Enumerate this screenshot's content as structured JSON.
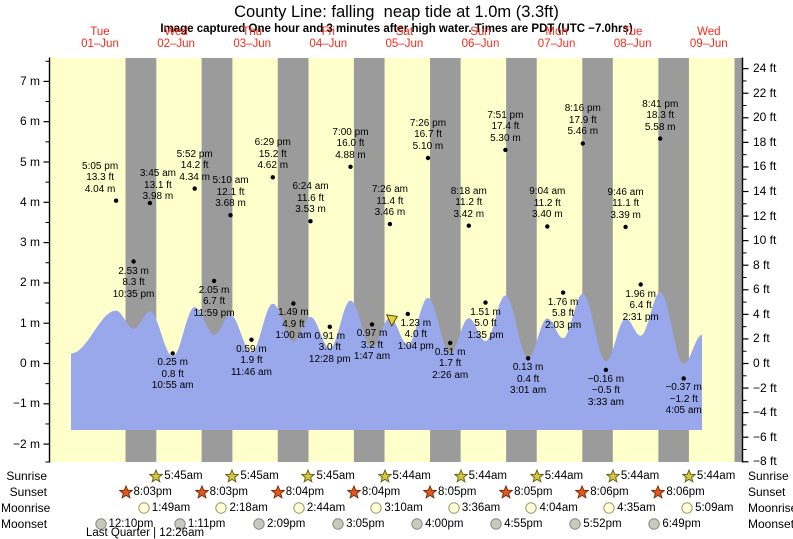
{
  "header": {
    "title": "County Line: falling  neap tide at 1.0m (3.3ft)",
    "subtitle": "Image captured One hour and 3 minutes after high water. Times are PDT (UTC −7.0hrs)"
  },
  "chart_data": {
    "type": "area",
    "title": "County Line: falling neap tide at 1.0m (3.3ft)",
    "xlabel": "",
    "ylabel_left": "meters",
    "ylabel_right": "feet",
    "ylim_m": [
      -2.44,
      7.58
    ],
    "grid": false,
    "days": [
      {
        "dow": "Tue",
        "date": "01–Jun"
      },
      {
        "dow": "Wed",
        "date": "02–Jun"
      },
      {
        "dow": "Thu",
        "date": "03–Jun"
      },
      {
        "dow": "Fri",
        "date": "04–Jun"
      },
      {
        "dow": "Sat",
        "date": "05–Jun"
      },
      {
        "dow": "Sun",
        "date": "06–Jun"
      },
      {
        "dow": "Mon",
        "date": "07–Jun"
      },
      {
        "dow": "Tue",
        "date": "08–Jun"
      },
      {
        "dow": "Wed",
        "date": "09–Jun"
      }
    ],
    "y_axis_left_ticks": [
      {
        "label": "7 m",
        "m": 7
      },
      {
        "label": "6 m",
        "m": 6
      },
      {
        "label": "5 m",
        "m": 5
      },
      {
        "label": "4 m",
        "m": 4
      },
      {
        "label": "3 m",
        "m": 3
      },
      {
        "label": "2 m",
        "m": 2
      },
      {
        "label": "1 m",
        "m": 1
      },
      {
        "label": "0 m",
        "m": 0
      },
      {
        "label": "−1 m",
        "m": -1
      },
      {
        "label": "−2 m",
        "m": -2
      }
    ],
    "y_axis_right_ticks": [
      {
        "label": "24 ft",
        "ft": 24
      },
      {
        "label": "22 ft",
        "ft": 22
      },
      {
        "label": "20 ft",
        "ft": 20
      },
      {
        "label": "18 ft",
        "ft": 18
      },
      {
        "label": "16 ft",
        "ft": 16
      },
      {
        "label": "14 ft",
        "ft": 14
      },
      {
        "label": "12 ft",
        "ft": 12
      },
      {
        "label": "10 ft",
        "ft": 10
      },
      {
        "label": "8 ft",
        "ft": 8
      },
      {
        "label": "6 ft",
        "ft": 6
      },
      {
        "label": "4 ft",
        "ft": 4
      },
      {
        "label": "2 ft",
        "ft": 2
      },
      {
        "label": "0 ft",
        "ft": 0
      },
      {
        "label": "−2 ft",
        "ft": -2
      },
      {
        "label": "−4 ft",
        "ft": -4
      },
      {
        "label": "−6 ft",
        "ft": -6
      },
      {
        "label": "−8 ft",
        "ft": -8
      }
    ],
    "tide_events": [
      {
        "day": 1,
        "time": "5:05 pm",
        "type": "high",
        "height_m": 4.04,
        "height_ft": 13.3,
        "lines": [
          "5:05 pm",
          "13.3 ft",
          "4.04 m"
        ]
      },
      {
        "day": 1,
        "time": "10:35 pm",
        "type": "low",
        "height_m": 2.53,
        "height_ft": 8.3,
        "lines": [
          "2.53 m",
          "8.3 ft",
          "10:35 pm"
        ]
      },
      {
        "day": 2,
        "time": "3:45 am",
        "type": "high",
        "height_m": 3.98,
        "height_ft": 13.1,
        "lines": [
          "3:45 am",
          "13.1 ft",
          "3.98 m"
        ]
      },
      {
        "day": 2,
        "time": "10:55 am",
        "type": "low",
        "height_m": 0.25,
        "height_ft": 0.8,
        "lines": [
          "0.25 m",
          "0.8 ft",
          "10:55 am"
        ]
      },
      {
        "day": 2,
        "time": "5:52 pm",
        "type": "high",
        "height_m": 4.34,
        "height_ft": 14.2,
        "lines": [
          "5:52 pm",
          "14.2 ft",
          "4.34 m"
        ]
      },
      {
        "day": 2,
        "time": "11:59 pm",
        "type": "low",
        "height_m": 2.05,
        "height_ft": 6.7,
        "lines": [
          "2.05 m",
          "6.7 ft",
          "11:59 pm"
        ]
      },
      {
        "day": 3,
        "time": "5:10 am",
        "type": "high",
        "height_m": 3.68,
        "height_ft": 12.1,
        "lines": [
          "5:10 am",
          "12.1 ft",
          "3.68 m"
        ]
      },
      {
        "day": 3,
        "time": "11:46 am",
        "type": "low",
        "height_m": 0.59,
        "height_ft": 1.9,
        "lines": [
          "0.59 m",
          "1.9 ft",
          "11:46 am"
        ]
      },
      {
        "day": 3,
        "time": "6:29 pm",
        "type": "high",
        "height_m": 4.62,
        "height_ft": 15.2,
        "lines": [
          "6:29 pm",
          "15.2 ft",
          "4.62 m"
        ]
      },
      {
        "day": 4,
        "time": "1:00 am",
        "type": "low",
        "height_m": 1.49,
        "height_ft": 4.9,
        "lines": [
          "1.49 m",
          "4.9 ft",
          "1:00 am"
        ]
      },
      {
        "day": 4,
        "time": "6:24 am",
        "type": "high",
        "height_m": 3.53,
        "height_ft": 11.6,
        "lines": [
          "6:24 am",
          "11.6 ft",
          "3.53 m"
        ]
      },
      {
        "day": 4,
        "time": "12:28 pm",
        "type": "low",
        "height_m": 0.91,
        "height_ft": 3.0,
        "lines": [
          "0.91 m",
          "3.0 ft",
          "12:28 pm"
        ]
      },
      {
        "day": 4,
        "time": "7:00 pm",
        "type": "high",
        "height_m": 4.88,
        "height_ft": 16.0,
        "lines": [
          "7:00 pm",
          "16.0 ft",
          "4.88 m"
        ]
      },
      {
        "day": 5,
        "time": "1:47 am",
        "type": "low",
        "height_m": 0.97,
        "height_ft": 3.2,
        "lines": [
          "0.97 m",
          "3.2 ft",
          "1:47 am"
        ]
      },
      {
        "day": 5,
        "time": "7:26 am",
        "type": "high",
        "height_m": 3.46,
        "height_ft": 11.4,
        "lines": [
          "7:26 am",
          "11.4 ft",
          "3.46 m"
        ]
      },
      {
        "day": 5,
        "time": "1:04 pm",
        "type": "low",
        "height_m": 1.23,
        "height_ft": 4.0,
        "lines": [
          "1.23 m",
          "4.0 ft",
          "1:04 pm"
        ]
      },
      {
        "day": 5,
        "time": "7:26 pm",
        "type": "high",
        "height_m": 5.1,
        "height_ft": 16.7,
        "lines": [
          "7:26 pm",
          "16.7 ft",
          "5.10 m"
        ]
      },
      {
        "day": 6,
        "time": "2:26 am",
        "type": "low",
        "height_m": 0.51,
        "height_ft": 1.7,
        "lines": [
          "0.51 m",
          "1.7 ft",
          "2:26 am"
        ]
      },
      {
        "day": 6,
        "time": "8:18 am",
        "type": "high",
        "height_m": 3.42,
        "height_ft": 11.2,
        "lines": [
          "8:18 am",
          "11.2 ft",
          "3.42 m"
        ]
      },
      {
        "day": 6,
        "time": "1:35 pm",
        "type": "low",
        "height_m": 1.51,
        "height_ft": 5.0,
        "lines": [
          "1.51 m",
          "5.0 ft",
          "1:35 pm"
        ]
      },
      {
        "day": 6,
        "time": "7:51 pm",
        "type": "high",
        "height_m": 5.3,
        "height_ft": 17.4,
        "lines": [
          "7:51 pm",
          "17.4 ft",
          "5.30 m"
        ]
      },
      {
        "day": 7,
        "time": "3:01 am",
        "type": "low",
        "height_m": 0.13,
        "height_ft": 0.4,
        "lines": [
          "0.13 m",
          "0.4 ft",
          "3:01 am"
        ]
      },
      {
        "day": 7,
        "time": "9:04 am",
        "type": "high",
        "height_m": 3.4,
        "height_ft": 11.2,
        "lines": [
          "9:04 am",
          "11.2 ft",
          "3.40 m"
        ]
      },
      {
        "day": 7,
        "time": "2:03 pm",
        "type": "low",
        "height_m": 1.76,
        "height_ft": 5.8,
        "lines": [
          "1.76 m",
          "5.8 ft",
          "2:03 pm"
        ]
      },
      {
        "day": 7,
        "time": "8:16 pm",
        "type": "high",
        "height_m": 5.46,
        "height_ft": 17.9,
        "lines": [
          "8:16 pm",
          "17.9 ft",
          "5.46 m"
        ]
      },
      {
        "day": 8,
        "time": "3:33 am",
        "type": "low",
        "height_m": -0.16,
        "height_ft": -0.5,
        "lines": [
          "−0.16 m",
          "−0.5 ft",
          "3:33 am"
        ]
      },
      {
        "day": 8,
        "time": "9:46 am",
        "type": "high",
        "height_m": 3.39,
        "height_ft": 11.1,
        "lines": [
          "9:46 am",
          "11.1 ft",
          "3.39 m"
        ]
      },
      {
        "day": 8,
        "time": "2:31 pm",
        "type": "low",
        "height_m": 1.96,
        "height_ft": 6.4,
        "lines": [
          "1.96 m",
          "6.4 ft",
          "2:31 pm"
        ]
      },
      {
        "day": 8,
        "time": "8:41 pm",
        "type": "high",
        "height_m": 5.58,
        "height_ft": 18.3,
        "lines": [
          "8:41 pm",
          "18.3 ft",
          "5.58 m"
        ]
      },
      {
        "day": 9,
        "time": "4:05 am",
        "type": "low",
        "height_m": -0.37,
        "height_ft": -1.2,
        "lines": [
          "−0.37 m",
          "−1.2 ft",
          "4:05 am"
        ]
      }
    ],
    "current_marker": {
      "day": 5,
      "time": "8:29 am",
      "description": "current tide position marker"
    },
    "colors": {
      "day_band": "#ffffcc",
      "night_band": "#9b9b9b",
      "tide_fill": "#98a8ea",
      "day_label_red": "#f52a1a",
      "axis_black": "#000000",
      "sunrise_star_fill": "#d5c73e",
      "sunrise_star_stroke": "#6b621a",
      "sunset_star_fill": "#e05a20",
      "sunset_star_stroke": "#7e2a0c",
      "moonrise_circle_fill": "#ffffd8",
      "moonrise_circle_stroke": "#99996a",
      "moonset_circle_fill": "#c9c9bd",
      "moonset_circle_stroke": "#888880",
      "marker_yellow": "#e6d33c",
      "marker_outline": "#55510f"
    }
  },
  "astro": {
    "rows": [
      {
        "label": "Sunrise",
        "icon": "sunrise-star-icon",
        "entries": [
          {
            "day": 2,
            "time": "5:45am"
          },
          {
            "day": 3,
            "time": "5:45am"
          },
          {
            "day": 4,
            "time": "5:45am"
          },
          {
            "day": 5,
            "time": "5:44am"
          },
          {
            "day": 6,
            "time": "5:44am"
          },
          {
            "day": 7,
            "time": "5:44am"
          },
          {
            "day": 8,
            "time": "5:44am"
          },
          {
            "day": 9,
            "time": "5:44am"
          }
        ]
      },
      {
        "label": "Sunset",
        "icon": "sunset-star-icon",
        "entries": [
          {
            "day": 1,
            "time": "8:03pm"
          },
          {
            "day": 2,
            "time": "8:03pm"
          },
          {
            "day": 3,
            "time": "8:04pm"
          },
          {
            "day": 4,
            "time": "8:04pm"
          },
          {
            "day": 5,
            "time": "8:05pm"
          },
          {
            "day": 6,
            "time": "8:05pm"
          },
          {
            "day": 7,
            "time": "8:06pm"
          },
          {
            "day": 8,
            "time": "8:06pm"
          }
        ]
      },
      {
        "label": "Moonrise",
        "icon": "moonrise-circle-icon",
        "entries": [
          {
            "day": 2,
            "time": "1:49am"
          },
          {
            "day": 3,
            "time": "2:18am"
          },
          {
            "day": 4,
            "time": "2:44am"
          },
          {
            "day": 5,
            "time": "3:10am"
          },
          {
            "day": 6,
            "time": "3:36am"
          },
          {
            "day": 7,
            "time": "4:04am"
          },
          {
            "day": 8,
            "time": "4:35am"
          },
          {
            "day": 9,
            "time": "5:09am"
          }
        ]
      },
      {
        "label": "Moonset",
        "icon": "moonset-circle-icon",
        "entries": [
          {
            "day": 1,
            "time": "12:10pm"
          },
          {
            "day": 2,
            "time": "1:11pm"
          },
          {
            "day": 3,
            "time": "2:09pm"
          },
          {
            "day": 4,
            "time": "3:05pm"
          },
          {
            "day": 5,
            "time": "4:00pm"
          },
          {
            "day": 6,
            "time": "4:55pm"
          },
          {
            "day": 7,
            "time": "5:52pm"
          },
          {
            "day": 8,
            "time": "6:49pm"
          }
        ]
      }
    ],
    "moon_phase": {
      "name": "Last Quarter",
      "time": "12:26am",
      "display": "Last Quarter | 12:26am"
    }
  }
}
